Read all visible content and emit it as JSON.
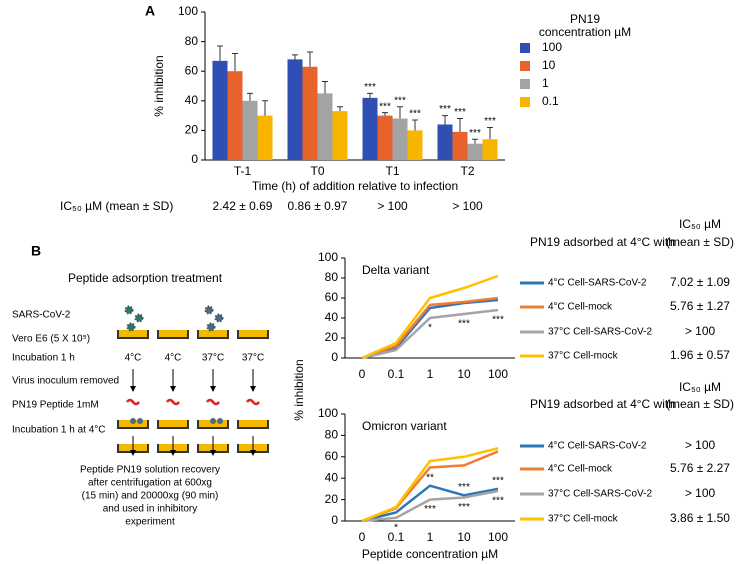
{
  "panel_labels": [
    "A",
    "B"
  ],
  "chart_data": [
    {
      "type": "bar",
      "xlabel": "Time (h) of addition relative to infection",
      "ylabel": "% inhibition",
      "categories": [
        "T-1",
        "T0",
        "T1",
        "T2"
      ],
      "ylim": [
        0,
        100
      ],
      "yticks": [
        0,
        20,
        40,
        60,
        80,
        100
      ],
      "legend_title": [
        "PN19",
        "concentration µM"
      ],
      "series": [
        {
          "name": "100",
          "color": "#2f4fb5",
          "values": [
            67,
            68,
            42,
            24
          ],
          "errors": [
            10,
            3,
            3,
            6
          ],
          "point_labels": [
            null,
            null,
            "***",
            "***"
          ]
        },
        {
          "name": "10",
          "color": "#e8632b",
          "values": [
            60,
            63,
            30,
            19
          ],
          "errors": [
            12,
            10,
            2,
            9
          ],
          "point_labels": [
            null,
            null,
            "***",
            "***"
          ]
        },
        {
          "name": "1",
          "color": "#a3a3a3",
          "values": [
            40,
            45,
            28,
            11
          ],
          "errors": [
            5,
            8,
            8,
            3
          ],
          "point_labels": [
            null,
            null,
            "***",
            "***"
          ]
        },
        {
          "name": "0.1",
          "color": "#f7b500",
          "values": [
            30,
            33,
            20,
            14
          ],
          "errors": [
            10,
            3,
            7,
            8
          ],
          "point_labels": [
            null,
            null,
            "***",
            "***"
          ]
        }
      ],
      "ic50_label": "IC₅₀ µM (mean ± SD)",
      "ic50_values": [
        "2.42 ± 0.69",
        "0.86 ± 0.97",
        "> 100",
        "> 100"
      ]
    },
    {
      "type": "line",
      "title": "Delta variant",
      "ylabel": "% inhibition",
      "categories": [
        "0",
        "0.1",
        "1",
        "10",
        "100"
      ],
      "ylim": [
        0,
        100
      ],
      "yticks": [
        0,
        20,
        40,
        60,
        80,
        100
      ],
      "legend_title": "PN19 adsorbed at 4°C with",
      "ic50_header": [
        "IC₅₀ µM",
        "(mean ± SD)"
      ],
      "series": [
        {
          "name": "4°C Cell-SARS-CoV-2",
          "color": "#2e75b6",
          "values": [
            0,
            10,
            50,
            55,
            58
          ],
          "ic50": "7.02 ± 1.09",
          "point_labels": [
            null,
            null,
            null,
            null,
            null
          ]
        },
        {
          "name": "4°C Cell-mock",
          "color": "#ed7d31",
          "values": [
            0,
            12,
            53,
            56,
            60
          ],
          "ic50": "5.76 ± 1.27",
          "point_labels": [
            null,
            null,
            null,
            null,
            null
          ]
        },
        {
          "name": "37°C Cell-SARS-CoV-2",
          "color": "#a5a5a5",
          "values": [
            0,
            8,
            40,
            44,
            48
          ],
          "ic50": "> 100",
          "point_labels": [
            null,
            null,
            "*",
            "***",
            "***"
          ]
        },
        {
          "name": "37°C Cell-mock",
          "color": "#ffc000",
          "values": [
            0,
            15,
            60,
            70,
            82
          ],
          "ic50": "1.96 ± 0.57",
          "point_labels": [
            null,
            null,
            null,
            null,
            null
          ]
        }
      ]
    },
    {
      "type": "line",
      "title": "Omicron variant",
      "xlabel": "Peptide concentration µM",
      "categories": [
        "0",
        "0.1",
        "1",
        "10",
        "100"
      ],
      "ylim": [
        0,
        100
      ],
      "yticks": [
        0,
        20,
        40,
        60,
        80,
        100
      ],
      "legend_title": "PN19 adsorbed at 4°C with",
      "ic50_header": [
        "IC₅₀ µM",
        "(mean ± SD)"
      ],
      "series": [
        {
          "name": "4°C Cell-SARS-CoV-2",
          "color": "#2e75b6",
          "values": [
            0,
            8,
            33,
            24,
            30
          ],
          "ic50": "> 100",
          "point_labels": [
            null,
            null,
            "**",
            "***",
            "***"
          ]
        },
        {
          "name": "4°C Cell-mock",
          "color": "#ed7d31",
          "values": [
            0,
            12,
            50,
            52,
            65
          ],
          "ic50": "5.76 ± 2.27",
          "point_labels": [
            null,
            null,
            null,
            null,
            null
          ]
        },
        {
          "name": "37°C Cell-SARS-CoV-2",
          "color": "#a5a5a5",
          "values": [
            0,
            3,
            20,
            22,
            28
          ],
          "ic50": "> 100",
          "point_labels": [
            null,
            "*",
            "***",
            "***",
            "***"
          ]
        },
        {
          "name": "37°C Cell-mock",
          "color": "#ffc000",
          "values": [
            0,
            13,
            56,
            60,
            68
          ],
          "ic50": "3.86 ± 1.50",
          "point_labels": [
            null,
            null,
            null,
            null,
            null
          ]
        }
      ]
    }
  ],
  "diagram": {
    "title": "Peptide adsorption treatment",
    "virus": "SARS-CoV-2",
    "cells": "Vero E6 (5 X 10⁵)",
    "incubation": "Incubation 1 h",
    "temperatures": [
      "4°C",
      "4°C",
      "37°C",
      "37°C"
    ],
    "removed": "Virus inoculum removed",
    "peptide": "PN19 Peptide 1mM",
    "incubation2": "Incubation 1 h at 4°C",
    "recovery": [
      "Peptide PN19 solution recovery",
      "after centrifugation at 600xg",
      "(15 min) and 20000xg (90 min)",
      "and used in inhibitory",
      "experiment"
    ]
  }
}
